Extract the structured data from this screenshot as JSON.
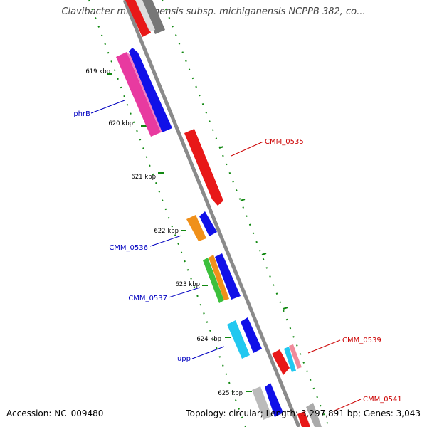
{
  "title": "Clavibacter michiganensis subsp. michiganensis NCPPB 382, co...",
  "footer": {
    "accession": "Accession: NC_009480",
    "summary": "Topology: circular; Length: 3,297,891 bp; Genes: 3,043"
  },
  "ticks": [
    "619 kbp",
    "620 kbp",
    "621 kbp",
    "622 kbp",
    "623 kbp",
    "624 kbp",
    "625 kbp"
  ],
  "gene_labels": [
    "phrB",
    "CMM_0535",
    "CMM_0536",
    "CMM_0537",
    "CMM_0539",
    "upp",
    "CMM_0541"
  ],
  "colors": {
    "blue": "#1010e8",
    "red": "#e81818",
    "pink": "#e83aa0",
    "orange": "#f0901a",
    "green": "#3cc03c",
    "cyan": "#22c8f0",
    "gray": "#888888",
    "label_blue": "#0000c0",
    "label_red": "#cc0000",
    "tick_green": "#118811"
  }
}
